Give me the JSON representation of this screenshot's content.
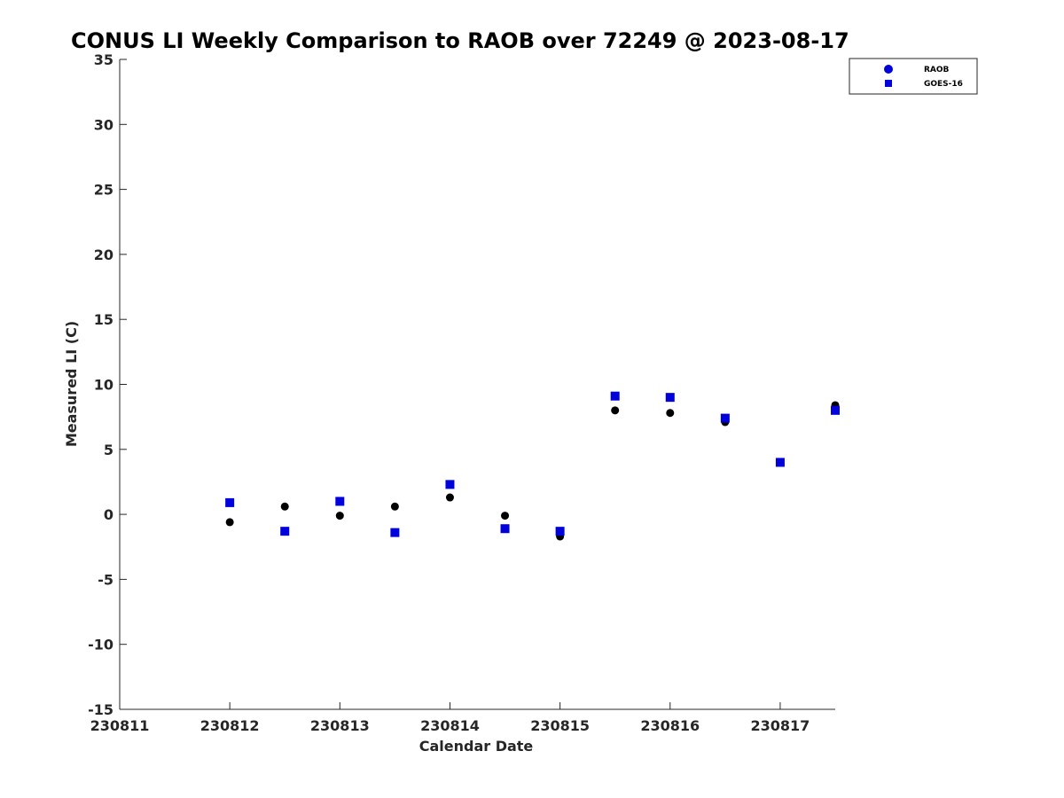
{
  "chart_data": {
    "type": "scatter",
    "title": "CONUS LI Weekly Comparison to RAOB over 72249 @ 2023-08-17",
    "xlabel": "Calendar Date",
    "ylabel": "Measured LI (C)",
    "x_ticks": [
      "230811",
      "230812",
      "230813",
      "230814",
      "230815",
      "230816",
      "230817"
    ],
    "xlim": [
      "2023-08-11",
      "2023-08-17 12:00"
    ],
    "ylim": [
      -15,
      35
    ],
    "y_ticks": [
      -15,
      -10,
      -5,
      0,
      5,
      10,
      15,
      20,
      25,
      30,
      35
    ],
    "grid": false,
    "legend_position": "top-right",
    "series": [
      {
        "name": "RAOB",
        "marker": "circle",
        "color": "#000000",
        "x": [
          "2023-08-12 00:00",
          "2023-08-12 12:00",
          "2023-08-13 00:00",
          "2023-08-13 12:00",
          "2023-08-14 00:00",
          "2023-08-14 12:00",
          "2023-08-15 00:00",
          "2023-08-15 12:00",
          "2023-08-16 00:00",
          "2023-08-16 12:00",
          "2023-08-17 00:00",
          "2023-08-17 12:00"
        ],
        "y": [
          -0.6,
          0.6,
          -0.1,
          0.6,
          1.3,
          -0.1,
          -1.7,
          8.0,
          7.8,
          7.1,
          4.0,
          8.4
        ]
      },
      {
        "name": "GOES-16",
        "marker": "square",
        "color": "#0000dd",
        "x": [
          "2023-08-12 00:00",
          "2023-08-12 12:00",
          "2023-08-13 00:00",
          "2023-08-13 12:00",
          "2023-08-14 00:00",
          "2023-08-14 12:00",
          "2023-08-15 00:00",
          "2023-08-15 12:00",
          "2023-08-16 00:00",
          "2023-08-16 12:00",
          "2023-08-17 00:00",
          "2023-08-17 12:00"
        ],
        "y": [
          0.9,
          -1.3,
          1.0,
          -1.4,
          2.3,
          -1.1,
          -1.3,
          9.1,
          9.0,
          7.4,
          4.0,
          8.0
        ]
      }
    ]
  }
}
